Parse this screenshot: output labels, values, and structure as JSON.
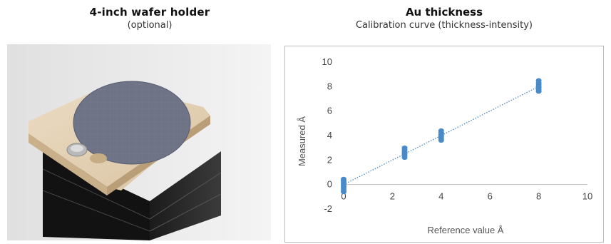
{
  "left_panel": {
    "title": "4-inch wafer holder",
    "subtitle": "(optional)"
  },
  "right_panel": {
    "title": "Au thickness",
    "subtitle": "Calibration curve (thickness-intensity)"
  },
  "chart_data": {
    "type": "scatter",
    "xlabel": "Reference value  Å",
    "ylabel": "Measured  Å",
    "xlim": [
      0,
      10
    ],
    "ylim": [
      -2,
      10
    ],
    "x_ticks": [
      0,
      2,
      4,
      6,
      8,
      10
    ],
    "y_ticks": [
      -2,
      0,
      2,
      4,
      6,
      8,
      10
    ],
    "grid": false,
    "marker_color": "#4a8ac8",
    "series": [
      {
        "x": [
          0,
          0,
          0,
          0,
          0,
          0,
          0,
          0
        ],
        "y": [
          -0.6,
          -0.45,
          -0.3,
          -0.15,
          0,
          0.15,
          0.3,
          0.45
        ]
      },
      {
        "x": [
          2.5,
          2.5,
          2.5,
          2.5,
          2.5,
          2.5,
          2.5
        ],
        "y": [
          2.2,
          2.35,
          2.5,
          2.6,
          2.7,
          2.85,
          3.0
        ]
      },
      {
        "x": [
          4,
          4,
          4,
          4,
          4,
          4,
          4
        ],
        "y": [
          3.6,
          3.75,
          3.9,
          4.0,
          4.1,
          4.25,
          4.4
        ]
      },
      {
        "x": [
          8,
          8,
          8,
          8,
          8,
          8,
          8
        ],
        "y": [
          7.6,
          7.75,
          7.9,
          8.0,
          8.15,
          8.3,
          8.5
        ]
      }
    ],
    "trendline": {
      "style": "dotted",
      "color": "#4a8ac8",
      "x": [
        0,
        8
      ],
      "y": [
        0,
        8
      ]
    }
  }
}
